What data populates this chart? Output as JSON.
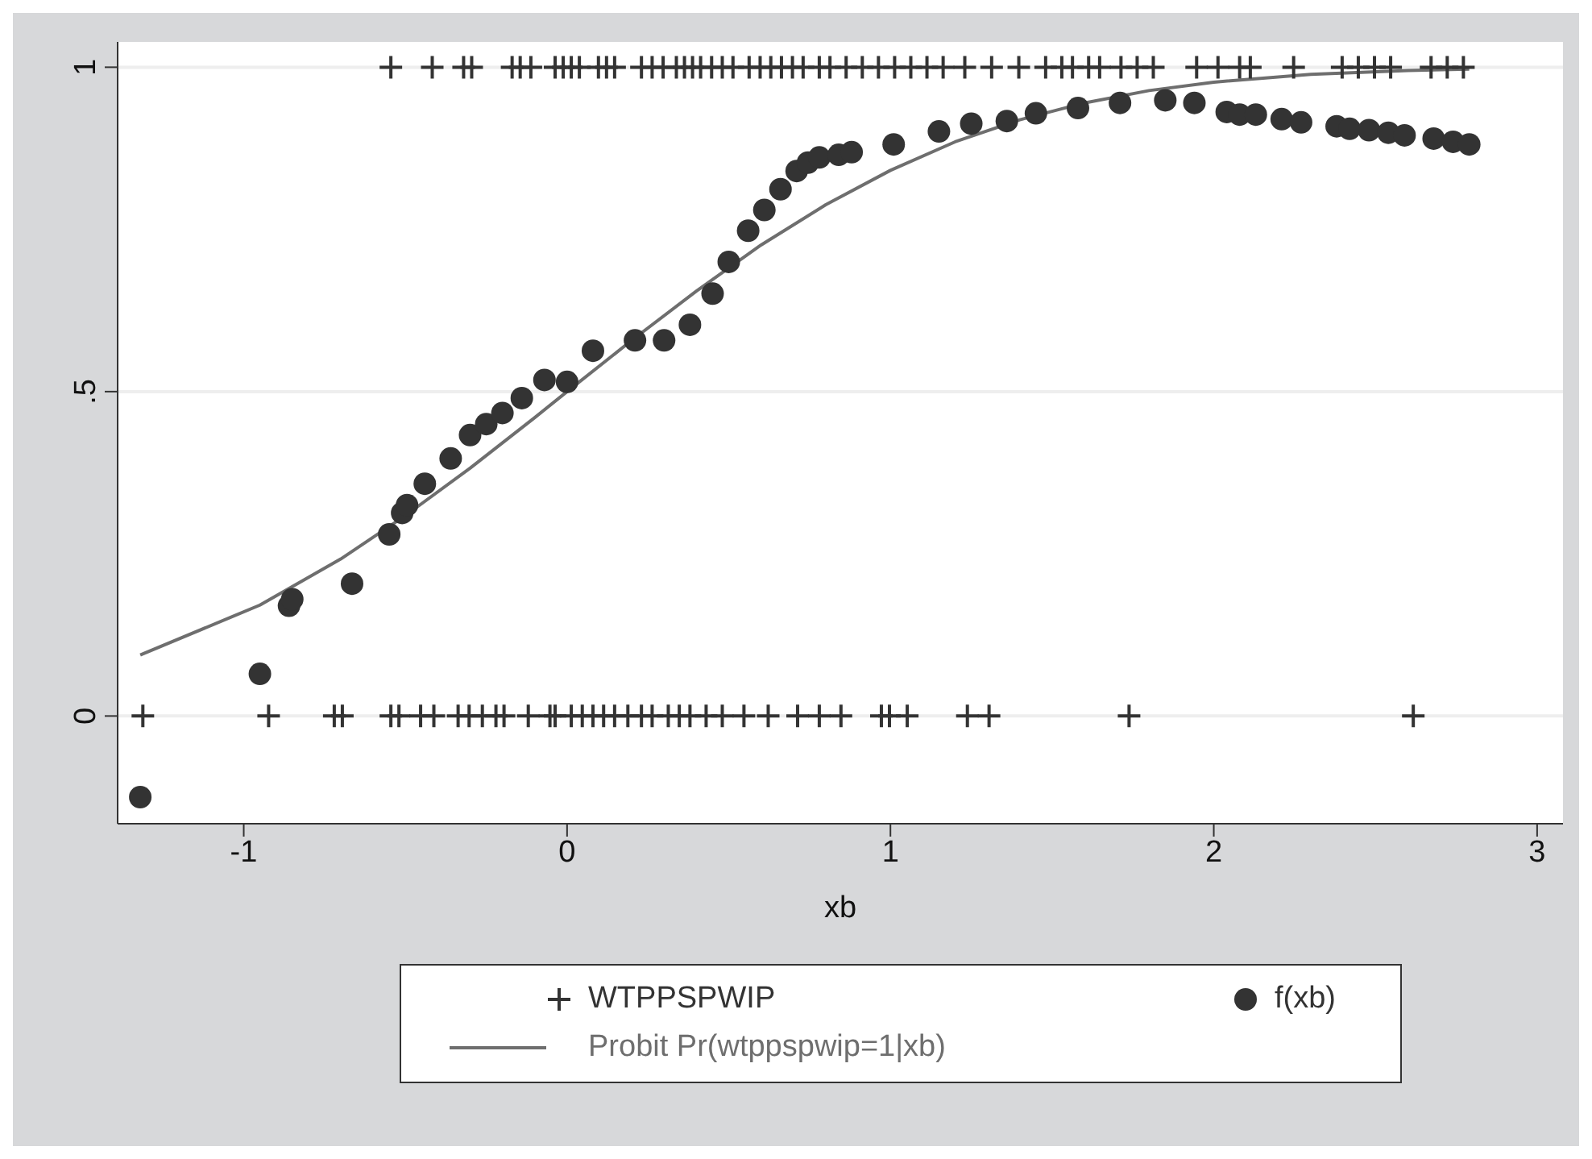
{
  "chart_data": {
    "type": "scatter",
    "xlabel": "xb",
    "xlim": [
      -1.39,
      3.08
    ],
    "xticks": [
      -1,
      0,
      1,
      2,
      3
    ],
    "ylim": [
      -0.166,
      1.039
    ],
    "yticks": [
      0,
      {
        "value": 0.5,
        "label": ".5"
      },
      1
    ],
    "grid": "y",
    "legend": "bottom",
    "series": [
      {
        "name": "WTPPSPWIP",
        "marker": "cross",
        "color": "#333333",
        "x": [
          -0.545,
          -0.417,
          -0.32,
          -0.295,
          -0.17,
          -0.145,
          -0.112,
          -0.037,
          -0.012,
          0.013,
          0.038,
          0.097,
          0.122,
          0.147,
          0.23,
          0.263,
          0.297,
          0.338,
          0.363,
          0.388,
          0.413,
          0.447,
          0.48,
          0.513,
          0.563,
          0.597,
          0.63,
          0.663,
          0.697,
          0.73,
          0.78,
          0.813,
          0.863,
          0.913,
          0.963,
          1.013,
          1.063,
          1.113,
          1.163,
          1.23,
          1.313,
          1.397,
          1.48,
          1.53,
          1.563,
          1.613,
          1.647,
          1.713,
          1.763,
          1.813,
          1.947,
          2.013,
          2.08,
          2.113,
          2.247,
          2.397,
          2.447,
          2.497,
          2.547,
          2.672,
          2.722,
          2.772,
          -1.312,
          -0.923,
          -0.72,
          -0.695,
          -0.545,
          -0.52,
          -0.453,
          -0.412,
          -0.337,
          -0.303,
          -0.262,
          -0.22,
          -0.195,
          -0.12,
          -0.053,
          -0.037,
          0.013,
          0.047,
          0.08,
          0.113,
          0.147,
          0.188,
          0.23,
          0.263,
          0.313,
          0.347,
          0.38,
          0.43,
          0.48,
          0.547,
          0.622,
          0.713,
          0.78,
          0.847,
          0.972,
          0.997,
          1.052,
          1.238,
          1.305,
          1.738,
          2.617
        ],
        "values": [
          1,
          1,
          1,
          1,
          1,
          1,
          1,
          1,
          1,
          1,
          1,
          1,
          1,
          1,
          1,
          1,
          1,
          1,
          1,
          1,
          1,
          1,
          1,
          1,
          1,
          1,
          1,
          1,
          1,
          1,
          1,
          1,
          1,
          1,
          1,
          1,
          1,
          1,
          1,
          1,
          1,
          1,
          1,
          1,
          1,
          1,
          1,
          1,
          1,
          1,
          1,
          1,
          1,
          1,
          1,
          1,
          1,
          1,
          1,
          1,
          1,
          1,
          0,
          0,
          0,
          0,
          0,
          0,
          0,
          0,
          0,
          0,
          0,
          0,
          0,
          0,
          0,
          0,
          0,
          0,
          0,
          0,
          0,
          0,
          0,
          0,
          0,
          0,
          0,
          0,
          0,
          0,
          0,
          0,
          0,
          0,
          0,
          0,
          0,
          0,
          0,
          0,
          0
        ]
      },
      {
        "name": "f(xb)",
        "marker": "circle",
        "color": "#333333",
        "x": [
          -1.32,
          -0.95,
          -0.86,
          -0.85,
          -0.665,
          -0.55,
          -0.51,
          -0.495,
          -0.44,
          -0.36,
          -0.3,
          -0.25,
          -0.2,
          -0.14,
          -0.07,
          0,
          0.08,
          0.21,
          0.3,
          0.38,
          0.45,
          0.5,
          0.56,
          0.61,
          0.66,
          0.71,
          0.745,
          0.78,
          0.84,
          0.88,
          1.01,
          1.15,
          1.25,
          1.36,
          1.45,
          1.58,
          1.71,
          1.85,
          1.94,
          2.04,
          2.08,
          2.13,
          2.21,
          2.27,
          2.38,
          2.42,
          2.48,
          2.54,
          2.59,
          2.68,
          2.74,
          2.79
        ],
        "values": [
          -0.125,
          0.065,
          0.17,
          0.18,
          0.204,
          0.28,
          0.313,
          0.325,
          0.358,
          0.397,
          0.433,
          0.45,
          0.467,
          0.49,
          0.518,
          0.515,
          0.563,
          0.579,
          0.579,
          0.603,
          0.651,
          0.7,
          0.748,
          0.78,
          0.812,
          0.84,
          0.853,
          0.861,
          0.865,
          0.869,
          0.881,
          0.901,
          0.913,
          0.917,
          0.929,
          0.937,
          0.945,
          0.949,
          0.945,
          0.931,
          0.927,
          0.927,
          0.92,
          0.915,
          0.909,
          0.905,
          0.903,
          0.899,
          0.895,
          0.89,
          0.885,
          0.881
        ]
      },
      {
        "name": "Probit Pr(wtppspwip=1|xb)",
        "type": "line",
        "marker": "none",
        "line_style": "solid",
        "color": "#6e6e6e",
        "x": [
          -1.32,
          -0.95,
          -0.7,
          -0.5,
          -0.3,
          -0.1,
          0,
          0.2,
          0.4,
          0.6,
          0.8,
          1.0,
          1.2,
          1.4,
          1.6,
          1.8,
          2.0,
          2.3,
          2.6,
          2.79
        ],
        "values": [
          0.094,
          0.171,
          0.242,
          0.309,
          0.382,
          0.46,
          0.5,
          0.579,
          0.655,
          0.726,
          0.788,
          0.841,
          0.885,
          0.919,
          0.945,
          0.964,
          0.977,
          0.989,
          0.995,
          0.997
        ]
      }
    ]
  }
}
